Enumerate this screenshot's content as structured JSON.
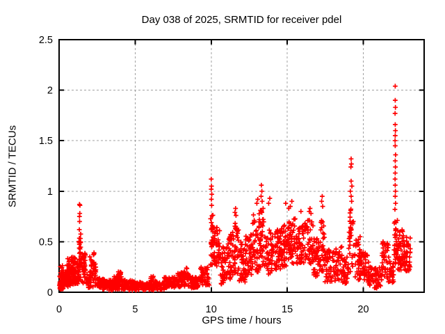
{
  "chart_data": {
    "type": "scatter",
    "title": "Day 038 of 2025, SRMTID for receiver pdel",
    "xlabel": "GPS time / hours",
    "ylabel": "SRMTID / TECUs",
    "xlim": [
      0,
      24
    ],
    "ylim": [
      0,
      2.5
    ],
    "xticks": [
      0,
      5,
      10,
      15,
      20
    ],
    "yticks": [
      0,
      0.5,
      1,
      1.5,
      2,
      2.5
    ],
    "grid": true,
    "grid_style": "dashed",
    "grid_color": "#a0a0a0",
    "axis_color": "#000000",
    "background": "#ffffff",
    "legend": "none",
    "tick_mirror": true,
    "marker": "+",
    "marker_color": "#ff0000",
    "encoding": {
      "dense_bands": "[start_hour, end_hour, min_tecu, max_tecu, point_count]",
      "outlier_points": "[hour, tecu]"
    },
    "dense_bands": [
      [
        0.0,
        0.35,
        0.03,
        0.18,
        44
      ],
      [
        0.08,
        0.3,
        0.12,
        0.27,
        14
      ],
      [
        0.35,
        0.75,
        0.05,
        0.22,
        46
      ],
      [
        0.45,
        0.68,
        0.15,
        0.34,
        20
      ],
      [
        0.75,
        1.15,
        0.06,
        0.25,
        46
      ],
      [
        0.8,
        1.05,
        0.18,
        0.36,
        22
      ],
      [
        1.15,
        1.3,
        0.08,
        0.3,
        16
      ],
      [
        1.28,
        1.45,
        0.12,
        0.58,
        28
      ],
      [
        1.45,
        1.75,
        0.08,
        0.38,
        30
      ],
      [
        1.6,
        1.78,
        0.18,
        0.4,
        12
      ],
      [
        1.78,
        2.05,
        0.04,
        0.2,
        26
      ],
      [
        2.0,
        2.3,
        0.18,
        0.4,
        14
      ],
      [
        2.05,
        2.45,
        0.05,
        0.3,
        36
      ],
      [
        2.45,
        3.0,
        0.03,
        0.14,
        48
      ],
      [
        3.0,
        3.6,
        0.02,
        0.12,
        52
      ],
      [
        3.6,
        4.2,
        0.03,
        0.16,
        50
      ],
      [
        3.88,
        4.12,
        0.1,
        0.21,
        12
      ],
      [
        4.2,
        5.0,
        0.02,
        0.12,
        64
      ],
      [
        5.0,
        6.0,
        0.02,
        0.1,
        80
      ],
      [
        6.0,
        6.2,
        0.07,
        0.16,
        10
      ],
      [
        6.0,
        6.9,
        0.02,
        0.11,
        66
      ],
      [
        6.9,
        7.8,
        0.04,
        0.15,
        66
      ],
      [
        7.8,
        8.6,
        0.05,
        0.2,
        60
      ],
      [
        8.2,
        8.5,
        0.12,
        0.24,
        12
      ],
      [
        8.6,
        9.3,
        0.04,
        0.15,
        52
      ],
      [
        9.3,
        9.9,
        0.07,
        0.25,
        42
      ],
      [
        9.95,
        10.12,
        0.25,
        0.8,
        24
      ],
      [
        10.1,
        10.6,
        0.15,
        0.68,
        44
      ],
      [
        10.6,
        11.05,
        0.08,
        0.45,
        40
      ],
      [
        11.05,
        11.45,
        0.12,
        0.6,
        38
      ],
      [
        11.45,
        11.8,
        0.18,
        0.72,
        38
      ],
      [
        11.8,
        12.25,
        0.1,
        0.5,
        44
      ],
      [
        12.25,
        12.65,
        0.15,
        0.57,
        38
      ],
      [
        12.65,
        13.15,
        0.2,
        0.78,
        46
      ],
      [
        13.15,
        13.5,
        0.25,
        0.85,
        36
      ],
      [
        13.5,
        14.0,
        0.18,
        0.62,
        44
      ],
      [
        14.0,
        14.55,
        0.22,
        0.62,
        48
      ],
      [
        14.55,
        15.05,
        0.25,
        0.68,
        48
      ],
      [
        15.05,
        15.6,
        0.28,
        0.75,
        50
      ],
      [
        15.6,
        16.1,
        0.28,
        0.68,
        46
      ],
      [
        16.1,
        16.7,
        0.28,
        0.72,
        50
      ],
      [
        16.7,
        17.1,
        0.15,
        0.55,
        38
      ],
      [
        17.1,
        17.45,
        0.2,
        0.75,
        32
      ],
      [
        17.45,
        18.0,
        0.1,
        0.42,
        44
      ],
      [
        18.0,
        18.6,
        0.1,
        0.46,
        44
      ],
      [
        18.6,
        19.0,
        0.08,
        0.35,
        34
      ],
      [
        19.0,
        19.35,
        0.2,
        0.85,
        32
      ],
      [
        19.35,
        19.85,
        0.12,
        0.55,
        40
      ],
      [
        19.85,
        20.35,
        0.08,
        0.4,
        40
      ],
      [
        20.35,
        21.2,
        0.04,
        0.25,
        58
      ],
      [
        21.2,
        21.7,
        0.08,
        0.5,
        38
      ],
      [
        21.7,
        22.0,
        0.08,
        0.32,
        26
      ],
      [
        22.02,
        22.25,
        0.28,
        0.72,
        30
      ],
      [
        22.25,
        22.75,
        0.22,
        0.62,
        48
      ],
      [
        22.75,
        23.1,
        0.18,
        0.55,
        34
      ]
    ],
    "outlier_points": [
      [
        1.33,
        0.62
      ],
      [
        1.35,
        0.7
      ],
      [
        1.34,
        0.75
      ],
      [
        1.36,
        0.78
      ],
      [
        1.34,
        0.87
      ],
      [
        1.37,
        0.86
      ],
      [
        10.0,
        1.12
      ],
      [
        10.02,
        1.05
      ],
      [
        10.0,
        1.02
      ],
      [
        10.04,
        0.97
      ],
      [
        10.01,
        0.92
      ],
      [
        10.03,
        0.86
      ],
      [
        11.6,
        0.83
      ],
      [
        11.56,
        0.79
      ],
      [
        11.63,
        0.76
      ],
      [
        13.0,
        0.88
      ],
      [
        13.06,
        0.92
      ],
      [
        13.3,
        1.06
      ],
      [
        13.33,
        1.0
      ],
      [
        13.28,
        0.95
      ],
      [
        13.35,
        0.9
      ],
      [
        13.85,
        0.93
      ],
      [
        13.78,
        0.88
      ],
      [
        14.9,
        0.88
      ],
      [
        15.3,
        0.9
      ],
      [
        15.2,
        0.85
      ],
      [
        15.1,
        0.83
      ],
      [
        15.9,
        0.8
      ],
      [
        16.5,
        0.83
      ],
      [
        16.45,
        0.8
      ],
      [
        16.56,
        0.78
      ],
      [
        17.3,
        0.95
      ],
      [
        17.26,
        0.9
      ],
      [
        17.33,
        0.85
      ],
      [
        19.2,
        1.32
      ],
      [
        19.22,
        1.27
      ],
      [
        19.18,
        1.24
      ],
      [
        19.2,
        1.1
      ],
      [
        19.25,
        1.05
      ],
      [
        19.15,
        1.0
      ],
      [
        19.2,
        0.95
      ],
      [
        19.23,
        0.9
      ],
      [
        22.1,
        2.04
      ],
      [
        22.1,
        1.9
      ],
      [
        22.11,
        1.83
      ],
      [
        22.09,
        1.77
      ],
      [
        22.1,
        1.66
      ],
      [
        22.11,
        1.6
      ],
      [
        22.1,
        1.55
      ],
      [
        22.09,
        1.5
      ],
      [
        22.1,
        1.45
      ],
      [
        22.12,
        1.36
      ],
      [
        22.1,
        1.3
      ],
      [
        22.11,
        1.24
      ],
      [
        22.1,
        1.18
      ],
      [
        22.09,
        1.12
      ],
      [
        22.1,
        1.06
      ],
      [
        22.11,
        1.0
      ],
      [
        22.1,
        0.95
      ],
      [
        22.12,
        0.88
      ],
      [
        22.08,
        0.82
      ]
    ]
  }
}
